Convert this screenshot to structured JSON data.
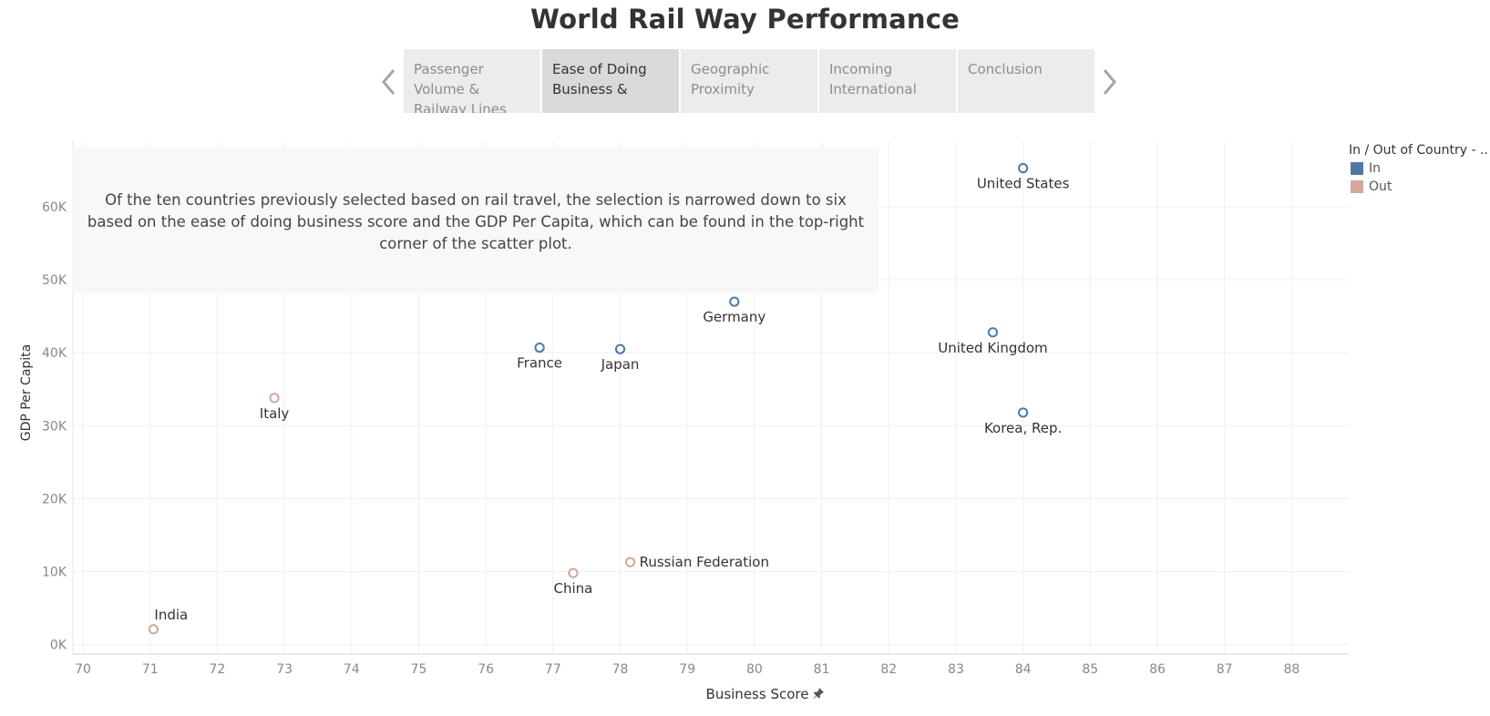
{
  "page_title": "World Rail Way Performance",
  "story_tabs": [
    {
      "label": "Passenger Volume & Railway Lines",
      "active": false
    },
    {
      "label": "Ease of Doing Business &",
      "active": true
    },
    {
      "label": "Geographic Proximity",
      "active": false
    },
    {
      "label": "Incoming International",
      "active": false
    },
    {
      "label": "Conclusion",
      "active": false
    }
  ],
  "nav": {
    "prev_icon": "chevron-left-icon",
    "next_icon": "chevron-right-icon"
  },
  "annotation": "Of the ten countries previously selected based on rail travel, the selection is narrowed down to six based on the ease of doing business score and the GDP Per Capita, which can be found in the top-right corner of the scatter plot.",
  "legend": {
    "title": "In / Out of Country - ..",
    "items": [
      {
        "label": "In",
        "color": "#4e79a7"
      },
      {
        "label": "Out",
        "color": "#d4a898"
      }
    ]
  },
  "chart_data": {
    "type": "scatter",
    "title": "World Rail Way Performance",
    "xlabel": "Business Score",
    "ylabel": "GDP Per Capita",
    "xlim": [
      69.85,
      88.85
    ],
    "ylim": [
      -1300,
      69000
    ],
    "x_ticks": [
      70,
      71,
      72,
      73,
      74,
      75,
      76,
      77,
      78,
      79,
      80,
      81,
      82,
      83,
      84,
      85,
      86,
      87,
      88
    ],
    "y_ticks": [
      {
        "value": 0,
        "label": "0K"
      },
      {
        "value": 10000,
        "label": "10K"
      },
      {
        "value": 20000,
        "label": "20K"
      },
      {
        "value": 30000,
        "label": "30K"
      },
      {
        "value": 40000,
        "label": "40K"
      },
      {
        "value": 50000,
        "label": "50K"
      },
      {
        "value": 60000,
        "label": "60K"
      }
    ],
    "grid": true,
    "legend_position": "top-right",
    "series": [
      {
        "name": "In",
        "color": "#4e79a7",
        "points": [
          {
            "label": "United States",
            "x": 84.0,
            "y": 65300,
            "label_pos": "below"
          },
          {
            "label": "Germany",
            "x": 79.7,
            "y": 47000,
            "label_pos": "below"
          },
          {
            "label": "United Kingdom",
            "x": 83.55,
            "y": 42800,
            "label_pos": "below"
          },
          {
            "label": "France",
            "x": 76.8,
            "y": 40700,
            "label_pos": "below"
          },
          {
            "label": "Japan",
            "x": 78.0,
            "y": 40500,
            "label_pos": "below"
          },
          {
            "label": "Korea, Rep.",
            "x": 84.0,
            "y": 31800,
            "label_pos": "below"
          }
        ]
      },
      {
        "name": "Out",
        "color": "#d4a898",
        "points": [
          {
            "label": "Italy",
            "x": 72.85,
            "y": 33800,
            "label_pos": "below"
          },
          {
            "label": "Russian Federation",
            "x": 78.15,
            "y": 11300,
            "label_pos": "right"
          },
          {
            "label": "China",
            "x": 77.3,
            "y": 9800,
            "label_pos": "below"
          },
          {
            "label": "India",
            "x": 71.05,
            "y": 2100,
            "label_pos": "above"
          }
        ]
      }
    ]
  }
}
